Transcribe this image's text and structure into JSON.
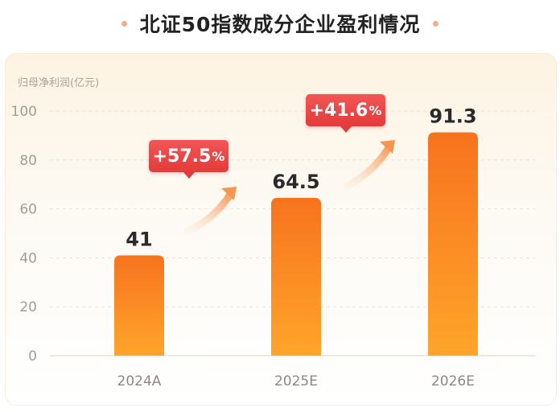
{
  "title": "北证50指数成分企业盈利情况",
  "colors": {
    "bar_top": "#f7731e",
    "bar_bottom": "#ffa52a",
    "badge": "#e94545",
    "arrow": "#f7a060",
    "title_dot": "#f7a98a"
  },
  "chart_data": {
    "type": "bar",
    "ylabel": "归母净利润(亿元)",
    "xlabel": "",
    "ylim": [
      0,
      100
    ],
    "yticks": [
      0,
      20,
      40,
      60,
      80,
      100
    ],
    "grid": true,
    "categories": [
      "2024A",
      "2025E",
      "2026E"
    ],
    "values": [
      41,
      64.5,
      91.3
    ],
    "value_labels": [
      "41",
      "64.5",
      "91.3"
    ],
    "growth_annotations": [
      {
        "from": "2024A",
        "to": "2025E",
        "sign": "+57.5",
        "unit": "%"
      },
      {
        "from": "2025E",
        "to": "2026E",
        "sign": "+41.6",
        "unit": "%"
      }
    ]
  }
}
